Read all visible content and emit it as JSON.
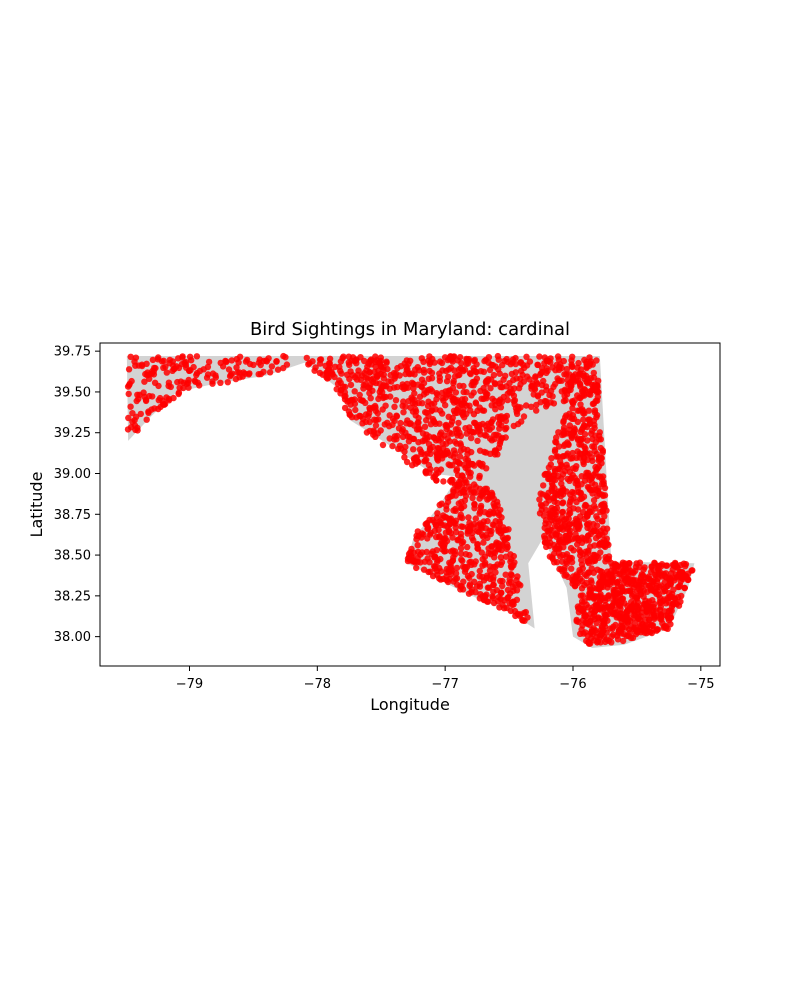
{
  "chart_data": {
    "type": "scatter",
    "title": "Bird Sightings in Maryland: cardinal",
    "xlabel": "Longitude",
    "ylabel": "Latitude",
    "xlim": [
      -79.7,
      -74.85
    ],
    "ylim": [
      37.82,
      39.8
    ],
    "xticks": [
      {
        "value": -79,
        "label": "−79"
      },
      {
        "value": -78,
        "label": "−78"
      },
      {
        "value": -77,
        "label": "−77"
      },
      {
        "value": -76,
        "label": "−76"
      },
      {
        "value": -75,
        "label": "−75"
      }
    ],
    "yticks": [
      {
        "value": 38.0,
        "label": "38.00"
      },
      {
        "value": 38.25,
        "label": "38.25"
      },
      {
        "value": 38.5,
        "label": "38.50"
      },
      {
        "value": 38.75,
        "label": "38.75"
      },
      {
        "value": 39.0,
        "label": "39.00"
      },
      {
        "value": 39.25,
        "label": "39.25"
      },
      {
        "value": 39.5,
        "label": "39.50"
      },
      {
        "value": 39.75,
        "label": "39.75"
      }
    ],
    "grid": false,
    "colors": {
      "points": "#ff0000",
      "land": "#d3d3d3"
    },
    "background_shape": "Maryland state outline (light gray)",
    "maryland_outline": [
      [
        -79.49,
        39.72
      ],
      [
        -75.79,
        39.72
      ],
      [
        -75.7,
        38.46
      ],
      [
        -75.05,
        38.45
      ],
      [
        -75.1,
        38.3
      ],
      [
        -75.25,
        38.05
      ],
      [
        -75.6,
        37.95
      ],
      [
        -75.85,
        37.93
      ],
      [
        -76.0,
        38.0
      ],
      [
        -76.05,
        38.3
      ],
      [
        -76.2,
        38.55
      ],
      [
        -76.25,
        38.85
      ],
      [
        -76.45,
        39.1
      ],
      [
        -76.28,
        38.95
      ],
      [
        -76.2,
        38.65
      ],
      [
        -76.35,
        38.45
      ],
      [
        -76.3,
        38.05
      ],
      [
        -76.5,
        38.15
      ],
      [
        -76.85,
        38.27
      ],
      [
        -77.05,
        38.35
      ],
      [
        -77.3,
        38.45
      ],
      [
        -77.25,
        38.6
      ],
      [
        -77.05,
        38.8
      ],
      [
        -76.9,
        38.98
      ],
      [
        -77.1,
        39.0
      ],
      [
        -77.45,
        39.18
      ],
      [
        -77.75,
        39.33
      ],
      [
        -77.8,
        39.5
      ],
      [
        -78.1,
        39.68
      ],
      [
        -78.4,
        39.6
      ],
      [
        -78.8,
        39.55
      ],
      [
        -79.1,
        39.5
      ],
      [
        -79.3,
        39.35
      ],
      [
        -79.48,
        39.2
      ]
    ],
    "series": [
      {
        "color": "#ff0000",
        "regions": [
          {
            "polygon": [
              [
                -79.49,
                39.72
              ],
              [
                -78.8,
                39.72
              ],
              [
                -78.8,
                39.55
              ],
              [
                -79.0,
                39.5
              ],
              [
                -79.2,
                39.42
              ],
              [
                -79.35,
                39.3
              ],
              [
                -79.48,
                39.2
              ]
            ],
            "density": 130
          },
          {
            "polygon": [
              [
                -78.8,
                39.72
              ],
              [
                -78.2,
                39.72
              ],
              [
                -78.2,
                39.66
              ],
              [
                -78.45,
                39.6
              ],
              [
                -78.8,
                39.53
              ]
            ],
            "density": 50
          },
          {
            "polygon": [
              [
                -78.2,
                39.72
              ],
              [
                -75.79,
                39.72
              ],
              [
                -75.8,
                39.55
              ],
              [
                -76.05,
                39.45
              ],
              [
                -76.35,
                39.35
              ],
              [
                -76.5,
                39.25
              ],
              [
                -76.6,
                39.1
              ],
              [
                -76.75,
                38.95
              ],
              [
                -76.9,
                38.92
              ],
              [
                -77.2,
                38.98
              ],
              [
                -77.45,
                39.15
              ],
              [
                -77.75,
                39.33
              ],
              [
                -77.85,
                39.52
              ],
              [
                -78.1,
                39.68
              ]
            ],
            "density": 900
          },
          {
            "polygon": [
              [
                -76.9,
                38.95
              ],
              [
                -76.65,
                38.92
              ],
              [
                -76.52,
                38.72
              ],
              [
                -76.45,
                38.45
              ],
              [
                -76.38,
                38.2
              ],
              [
                -76.33,
                38.05
              ],
              [
                -76.5,
                38.15
              ],
              [
                -76.85,
                38.27
              ],
              [
                -77.05,
                38.35
              ],
              [
                -77.3,
                38.45
              ],
              [
                -77.25,
                38.62
              ],
              [
                -77.05,
                38.8
              ]
            ],
            "density": 450
          },
          {
            "polygon": [
              [
                -75.8,
                39.55
              ],
              [
                -75.71,
                38.46
              ],
              [
                -76.0,
                38.3
              ],
              [
                -76.2,
                38.5
              ],
              [
                -76.28,
                38.8
              ],
              [
                -76.22,
                39.0
              ],
              [
                -76.1,
                39.3
              ],
              [
                -76.0,
                39.48
              ]
            ],
            "density": 550
          },
          {
            "polygon": [
              [
                -75.7,
                38.46
              ],
              [
                -75.05,
                38.45
              ],
              [
                -75.1,
                38.3
              ],
              [
                -75.25,
                38.05
              ],
              [
                -75.6,
                37.97
              ],
              [
                -75.9,
                37.95
              ],
              [
                -75.98,
                38.05
              ],
              [
                -75.95,
                38.3
              ]
            ],
            "density": 600
          }
        ]
      }
    ]
  }
}
